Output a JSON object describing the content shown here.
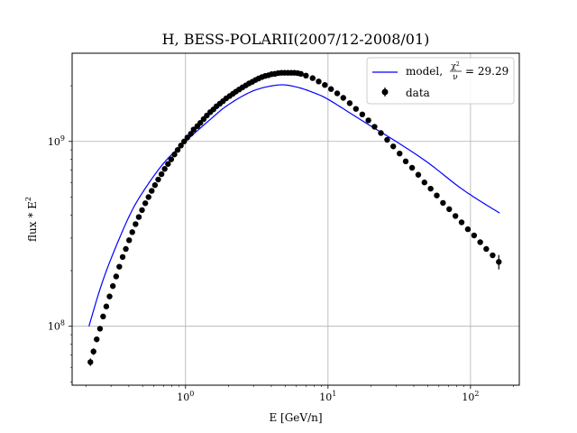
{
  "chart_data": {
    "type": "scatter",
    "title": "H, BESS-POLARII(2007/12-2008/01)",
    "xlabel": "E [GeV/n]",
    "ylabel": "flux * E",
    "ylabel_sup": "2",
    "xscale": "log",
    "yscale": "log",
    "xlim": [
      0.16,
      220
    ],
    "ylim": [
      48000000,
      3000000000
    ],
    "grid": true,
    "legend": "top-right",
    "x_ticks": [
      {
        "value": 1,
        "base": "10",
        "exp": "0"
      },
      {
        "value": 10,
        "base": "10",
        "exp": "1"
      },
      {
        "value": 100,
        "base": "10",
        "exp": "2"
      }
    ],
    "y_ticks": [
      {
        "value": 100000000,
        "base": "10",
        "exp": "8"
      },
      {
        "value": 1000000000,
        "base": "10",
        "exp": "9"
      }
    ],
    "series": [
      {
        "name": "model,",
        "chi_label": "χ",
        "chi_exp": "2",
        "nu_label": "ν",
        "chi_value": "= 29.29",
        "kind": "line",
        "color": "#0000ff",
        "x": [
          0.21,
          0.25,
          0.3,
          0.4,
          0.5,
          0.7,
          1.0,
          1.5,
          2.0,
          3.0,
          4.5,
          6.0,
          8.0,
          10.0,
          15.0,
          20.0,
          30.0,
          50.0,
          80.0,
          110.0,
          160.0
        ],
        "y": [
          100000000,
          157000000,
          232000000,
          390000000,
          530000000,
          760000000,
          1000000000,
          1320000000,
          1580000000,
          1880000000,
          2020000000,
          1970000000,
          1830000000,
          1690000000,
          1390000000,
          1210000000,
          1000000000,
          770000000,
          580000000,
          490000000,
          410000000
        ]
      },
      {
        "name": "data",
        "kind": "errorbar",
        "color": "#000000",
        "x": [
          0.215,
          0.226,
          0.238,
          0.251,
          0.264,
          0.278,
          0.293,
          0.309,
          0.326,
          0.343,
          0.362,
          0.381,
          0.402,
          0.423,
          0.446,
          0.47,
          0.495,
          0.522,
          0.55,
          0.579,
          0.61,
          0.643,
          0.678,
          0.714,
          0.753,
          0.793,
          0.836,
          0.881,
          0.928,
          0.978,
          1.03,
          1.09,
          1.14,
          1.21,
          1.27,
          1.34,
          1.41,
          1.49,
          1.57,
          1.65,
          1.74,
          1.83,
          1.93,
          2.04,
          2.15,
          2.26,
          2.38,
          2.51,
          2.65,
          2.79,
          2.94,
          3.1,
          3.26,
          3.44,
          3.62,
          3.82,
          4.02,
          4.24,
          4.47,
          4.71,
          4.96,
          5.23,
          5.51,
          5.8,
          6.12,
          6.45,
          7.0,
          7.8,
          8.6,
          9.5,
          10.5,
          11.6,
          12.8,
          14.2,
          15.7,
          17.4,
          19.2,
          21.2,
          23.5,
          26.0,
          28.7,
          31.8,
          35.1,
          38.9,
          43.0,
          47.5,
          52.5,
          58.0,
          64.1,
          70.9,
          78.4,
          86.6,
          95.8,
          106.0,
          117.0,
          129.0,
          143.0,
          158.0
        ],
        "y": [
          64000000,
          73000000,
          85000000,
          97000000,
          113000000,
          128000000,
          145000000,
          165000000,
          186000000,
          210000000,
          237000000,
          262000000,
          292000000,
          323000000,
          357000000,
          390000000,
          425000000,
          463000000,
          500000000,
          540000000,
          580000000,
          622000000,
          665000000,
          710000000,
          755000000,
          800000000,
          850000000,
          900000000,
          950000000,
          1000000000,
          1050000000,
          1100000000,
          1160000000,
          1210000000,
          1260000000,
          1320000000,
          1380000000,
          1440000000,
          1490000000,
          1550000000,
          1600000000,
          1650000000,
          1710000000,
          1760000000,
          1810000000,
          1860000000,
          1910000000,
          1960000000,
          2010000000,
          2060000000,
          2100000000,
          2150000000,
          2190000000,
          2230000000,
          2260000000,
          2280000000,
          2310000000,
          2320000000,
          2340000000,
          2350000000,
          2350000000,
          2350000000,
          2350000000,
          2350000000,
          2340000000,
          2320000000,
          2270000000,
          2200000000,
          2110000000,
          2020000000,
          1920000000,
          1820000000,
          1720000000,
          1610000000,
          1500000000,
          1400000000,
          1300000000,
          1200000000,
          1110000000,
          1020000000,
          940000000,
          860000000,
          780000000,
          720000000,
          660000000,
          600000000,
          555000000,
          510000000,
          465000000,
          430000000,
          395000000,
          365000000,
          335000000,
          310000000,
          285000000,
          262000000,
          242000000,
          223000000
        ],
        "yerr": [
          3000000,
          3000000,
          3000000,
          3000000,
          3000000,
          3000000,
          3000000,
          3000000,
          3000000,
          3000000,
          3000000,
          3000000,
          3000000,
          3000000,
          3000000,
          3000000,
          3000000,
          3000000,
          3000000,
          3000000,
          3000000,
          3000000,
          3000000,
          3000000,
          3000000,
          3000000,
          3000000,
          3000000,
          3000000,
          3000000,
          3000000,
          3000000,
          3000000,
          3000000,
          3000000,
          3000000,
          3000000,
          3000000,
          3000000,
          3000000,
          3000000,
          3000000,
          3000000,
          3000000,
          3000000,
          3000000,
          3000000,
          3000000,
          3000000,
          3000000,
          3000000,
          3000000,
          3000000,
          3000000,
          3000000,
          3000000,
          3000000,
          3000000,
          3000000,
          3000000,
          3000000,
          3000000,
          3000000,
          3000000,
          3000000,
          3000000,
          3000000,
          3000000,
          3000000,
          3000000,
          3000000,
          3000000,
          3000000,
          3000000,
          3000000,
          3000000,
          3000000,
          3000000,
          3000000,
          3000000,
          3000000,
          3000000,
          3000000,
          3000000,
          3000000,
          3000000,
          3000000,
          3000000,
          3000000,
          3000000,
          3000000,
          3000000,
          3000000,
          3000000,
          3000000,
          3000000,
          3000000,
          20000000
        ]
      }
    ]
  }
}
